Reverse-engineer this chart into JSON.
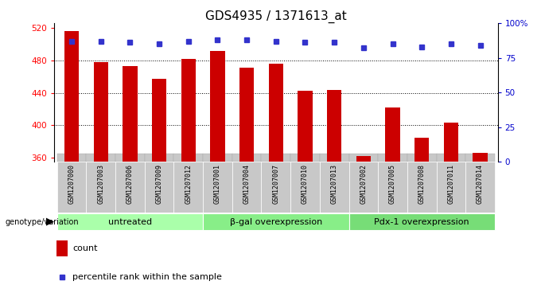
{
  "title": "GDS4935 / 1371613_at",
  "samples": [
    "GSM1207000",
    "GSM1207003",
    "GSM1207006",
    "GSM1207009",
    "GSM1207012",
    "GSM1207001",
    "GSM1207004",
    "GSM1207007",
    "GSM1207010",
    "GSM1207013",
    "GSM1207002",
    "GSM1207005",
    "GSM1207008",
    "GSM1207011",
    "GSM1207014"
  ],
  "counts": [
    516,
    478,
    473,
    457,
    482,
    492,
    471,
    476,
    443,
    444,
    362,
    422,
    385,
    403,
    366
  ],
  "percentiles": [
    87,
    87,
    86,
    85,
    87,
    88,
    88,
    87,
    86,
    86,
    82,
    85,
    83,
    85,
    84
  ],
  "groups": [
    {
      "label": "untreated",
      "start": 0,
      "end": 5,
      "color": "#aaffaa"
    },
    {
      "label": "β-gal overexpression",
      "start": 5,
      "end": 10,
      "color": "#88ee88"
    },
    {
      "label": "Pdx-1 overexpression",
      "start": 10,
      "end": 15,
      "color": "#77dd77"
    }
  ],
  "ymin": 355,
  "ymax": 526,
  "yticks": [
    360,
    400,
    440,
    480,
    520
  ],
  "right_yticks": [
    0,
    25,
    50,
    75,
    100
  ],
  "bar_color": "#cc0000",
  "dot_color": "#3333cc",
  "bar_width": 0.5,
  "tick_label_bg": "#c8c8c8",
  "grid_color": "black",
  "title_fontsize": 11,
  "tick_fontsize": 7.5,
  "sample_fontsize": 6,
  "group_fontsize": 8
}
